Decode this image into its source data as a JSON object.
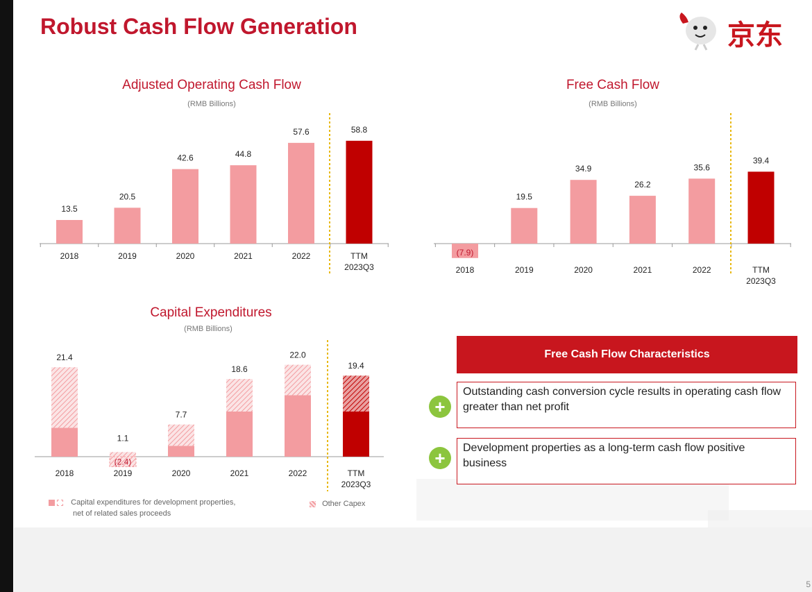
{
  "page": {
    "title": "Robust Cash Flow Generation",
    "logo_text": "京东",
    "page_number": "5",
    "colors": {
      "accent": "#c0172d",
      "bar_light": "#f39ca0",
      "bar_dark": "#c00000",
      "marker": "#e8b80f",
      "icon_green": "#8cc53e"
    }
  },
  "chart_data": [
    {
      "id": "aocf",
      "type": "bar",
      "title": "Adjusted Operating Cash Flow",
      "subtitle": "(RMB Billions)",
      "categories": [
        "2018",
        "2019",
        "2020",
        "2021",
        "2022",
        "TTM 2023Q3"
      ],
      "values": [
        13.5,
        20.5,
        42.6,
        44.8,
        57.6,
        58.8
      ],
      "labels": [
        "13.5",
        "20.5",
        "42.6",
        "44.8",
        "57.6",
        "58.8"
      ],
      "ylim": [
        0,
        65
      ]
    },
    {
      "id": "fcf",
      "type": "bar",
      "title": "Free Cash Flow",
      "subtitle": "(RMB Billions)",
      "categories": [
        "2018",
        "2019",
        "2020",
        "2021",
        "2022",
        "TTM 2023Q3"
      ],
      "values": [
        -7.9,
        19.5,
        34.9,
        26.2,
        35.6,
        39.4
      ],
      "labels": [
        "(7.9)",
        "19.5",
        "34.9",
        "26.2",
        "35.6",
        "39.4"
      ],
      "ylim": [
        -10,
        45
      ]
    },
    {
      "id": "capex",
      "type": "bar",
      "stacked": true,
      "title": "Capital Expenditures",
      "subtitle": "(RMB Billions)",
      "categories": [
        "2018",
        "2019",
        "2020",
        "2021",
        "2022",
        "TTM 2023Q3"
      ],
      "series": [
        {
          "name": "Capital expenditures for development properties, net of related sales proceeds",
          "values": [
            6.9,
            -2.4,
            2.6,
            10.8,
            14.7,
            10.8
          ]
        },
        {
          "name": "Other Capex",
          "values": [
            14.5,
            3.5,
            5.1,
            7.8,
            7.3,
            8.6
          ]
        }
      ],
      "totals": [
        21.4,
        1.1,
        7.7,
        18.6,
        22.0,
        19.4
      ],
      "labels": [
        "21.4",
        "1.1",
        "7.7",
        "18.6",
        "22.0",
        "19.4"
      ],
      "negative_labels": [
        "",
        "(2.4)",
        "",
        "",
        "",
        ""
      ],
      "ylim": [
        -5,
        27
      ]
    }
  ],
  "legend": {
    "dev_label_line1": "Capital expenditures for development properties,",
    "dev_label_line2": "net of related sales proceeds",
    "other_label": "Other Capex"
  },
  "characteristics": {
    "header": "Free Cash Flow Characteristics",
    "items": [
      "Outstanding cash conversion cycle results in operating cash flow greater than net profit",
      "Development properties as a long-term cash flow positive business"
    ]
  }
}
